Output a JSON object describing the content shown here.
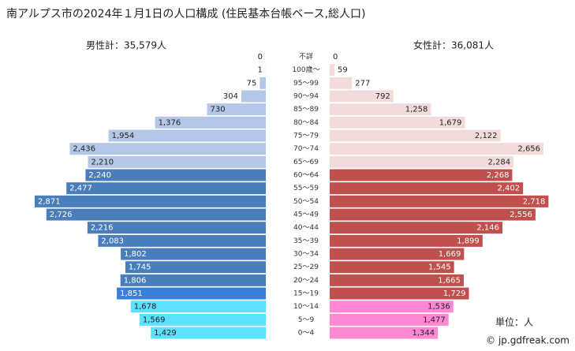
{
  "chart_data": {
    "type": "pyramid",
    "title": "南アルプス市の2024年１月1日の人口構成 (住民基本台帳ベース,総人口)",
    "unit_label": "単位：人",
    "credit": "© jp.gdfreak.com",
    "categories": [
      "不詳",
      "100歳～",
      "95～99",
      "90～94",
      "85～89",
      "80～84",
      "75～79",
      "70～74",
      "65～69",
      "60～64",
      "55～59",
      "50～54",
      "45～49",
      "40～44",
      "35～39",
      "30～34",
      "25～29",
      "20～24",
      "15～19",
      "10～14",
      "5～9",
      "0～4"
    ],
    "series": [
      {
        "name": "男性計：35,579人",
        "side": "left",
        "values": [
          0,
          1,
          75,
          304,
          730,
          1376,
          1954,
          2436,
          2210,
          2240,
          2477,
          2871,
          2726,
          2216,
          2083,
          1802,
          1745,
          1806,
          1851,
          1678,
          1569,
          1429
        ],
        "value_labels": [
          "0",
          "1",
          "75",
          "304",
          "730",
          "1,376",
          "1,954",
          "2,436",
          "2,210",
          "2,240",
          "2,477",
          "2,871",
          "2,726",
          "2,216",
          "2,083",
          "1,802",
          "1,745",
          "1,806",
          "1,851",
          "1,678",
          "1,569",
          "1,429"
        ],
        "colors": [
          "#b4c7e7",
          "#b4c7e7",
          "#b4c7e7",
          "#b4c7e7",
          "#b4c7e7",
          "#b4c7e7",
          "#b4c7e7",
          "#b4c7e7",
          "#b4c7e7",
          "#4a7ebb",
          "#4a7ebb",
          "#4a7ebb",
          "#4a7ebb",
          "#4a7ebb",
          "#4a7ebb",
          "#4a7ebb",
          "#4a7ebb",
          "#4a7ebb",
          "#3a7fd8",
          "#5ce1ff",
          "#5ce1ff",
          "#5ce1ff"
        ]
      },
      {
        "name": "女性計：36,081人",
        "side": "right",
        "values": [
          0,
          59,
          277,
          792,
          1258,
          1679,
          2122,
          2656,
          2284,
          2268,
          2402,
          2718,
          2556,
          2146,
          1899,
          1669,
          1545,
          1665,
          1729,
          1536,
          1477,
          1344
        ],
        "value_labels": [
          "0",
          "59",
          "277",
          "792",
          "1,258",
          "1,679",
          "2,122",
          "2,656",
          "2,284",
          "2,268",
          "2,402",
          "2,718",
          "2,556",
          "2,146",
          "1,899",
          "1,669",
          "1,545",
          "1,665",
          "1,729",
          "1,536",
          "1,477",
          "1,344"
        ],
        "colors": [
          "#f2dcdb",
          "#f2dcdb",
          "#f2dcdb",
          "#f2dcdb",
          "#f2dcdb",
          "#f2dcdb",
          "#f2dcdb",
          "#f2dcdb",
          "#f2dcdb",
          "#c0504d",
          "#c0504d",
          "#c0504d",
          "#c0504d",
          "#c0504d",
          "#c0504d",
          "#c0504d",
          "#c0504d",
          "#c0504d",
          "#c0504d",
          "#ff88d5",
          "#ff88d5",
          "#ff88d5"
        ]
      }
    ]
  }
}
